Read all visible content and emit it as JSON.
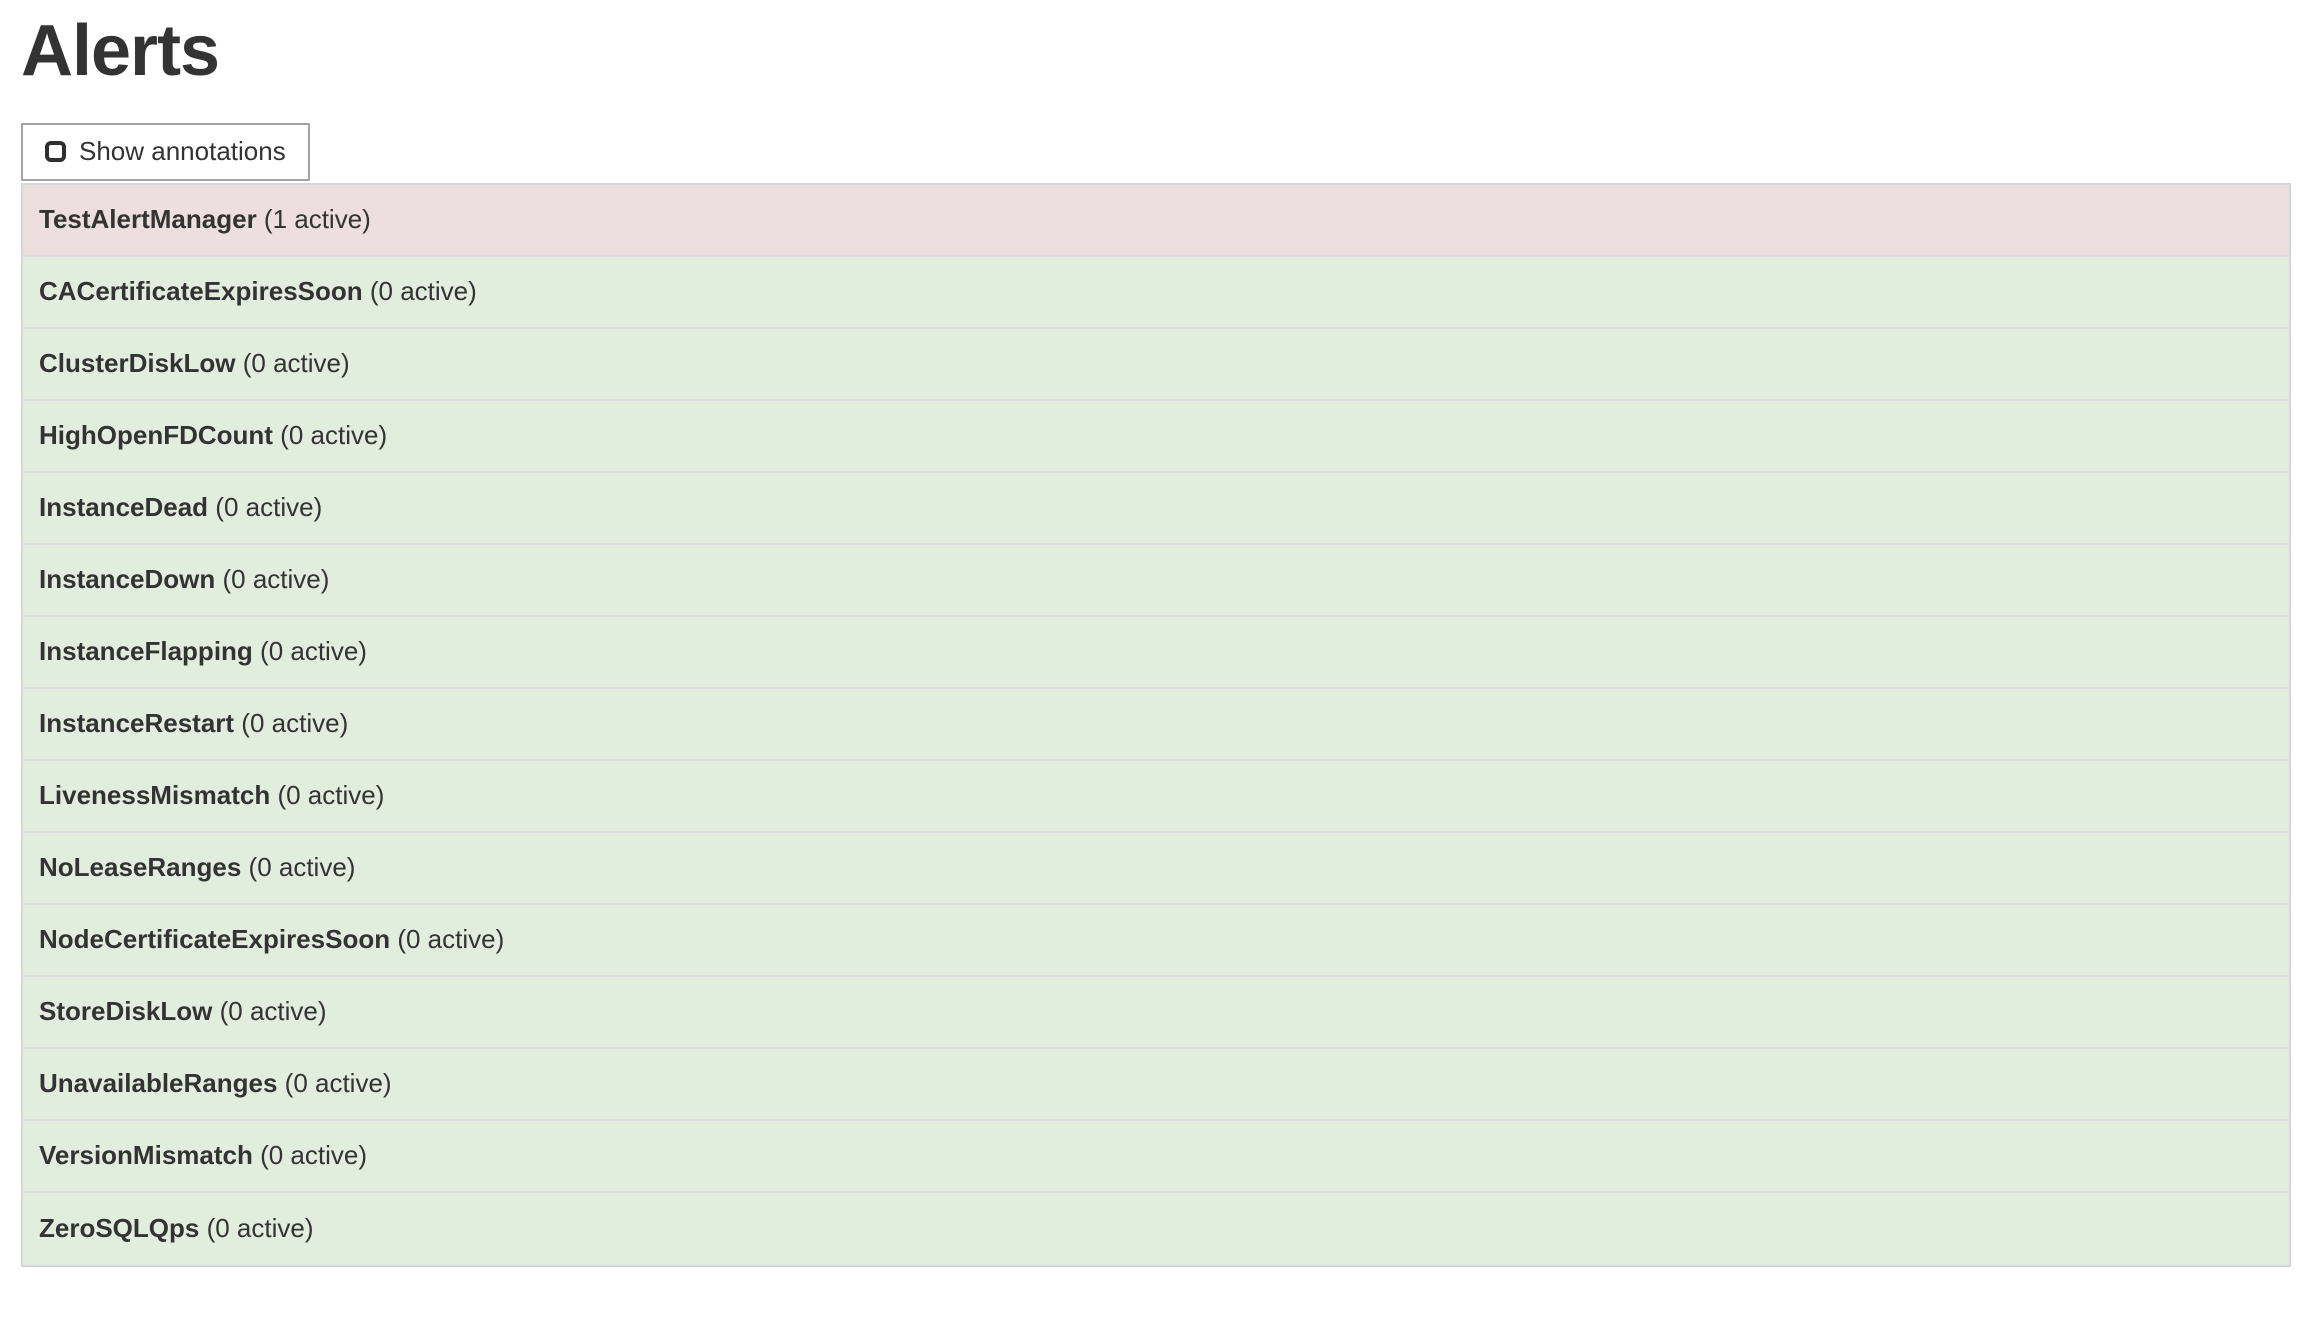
{
  "page": {
    "title": "Alerts"
  },
  "toolbar": {
    "show_annotations_label": "Show annotations",
    "checkbox_checked": false
  },
  "alerts": [
    {
      "name": "TestAlertManager",
      "active_count": 1,
      "count_label": "(1 active)",
      "state": "firing"
    },
    {
      "name": "CACertificateExpiresSoon",
      "active_count": 0,
      "count_label": "(0 active)",
      "state": "inactive"
    },
    {
      "name": "ClusterDiskLow",
      "active_count": 0,
      "count_label": "(0 active)",
      "state": "inactive"
    },
    {
      "name": "HighOpenFDCount",
      "active_count": 0,
      "count_label": "(0 active)",
      "state": "inactive"
    },
    {
      "name": "InstanceDead",
      "active_count": 0,
      "count_label": "(0 active)",
      "state": "inactive"
    },
    {
      "name": "InstanceDown",
      "active_count": 0,
      "count_label": "(0 active)",
      "state": "inactive"
    },
    {
      "name": "InstanceFlapping",
      "active_count": 0,
      "count_label": "(0 active)",
      "state": "inactive"
    },
    {
      "name": "InstanceRestart",
      "active_count": 0,
      "count_label": "(0 active)",
      "state": "inactive"
    },
    {
      "name": "LivenessMismatch",
      "active_count": 0,
      "count_label": "(0 active)",
      "state": "inactive"
    },
    {
      "name": "NoLeaseRanges",
      "active_count": 0,
      "count_label": "(0 active)",
      "state": "inactive"
    },
    {
      "name": "NodeCertificateExpiresSoon",
      "active_count": 0,
      "count_label": "(0 active)",
      "state": "inactive"
    },
    {
      "name": "StoreDiskLow",
      "active_count": 0,
      "count_label": "(0 active)",
      "state": "inactive"
    },
    {
      "name": "UnavailableRanges",
      "active_count": 0,
      "count_label": "(0 active)",
      "state": "inactive"
    },
    {
      "name": "VersionMismatch",
      "active_count": 0,
      "count_label": "(0 active)",
      "state": "inactive"
    },
    {
      "name": "ZeroSQLQps",
      "active_count": 0,
      "count_label": "(0 active)",
      "state": "inactive"
    }
  ],
  "colors": {
    "firing_bg": "#eddee0",
    "inactive_bg": "#e2eedd",
    "row_border": "#dcdce0",
    "outer_border": "#d6d6da",
    "text": "#333333",
    "button_border": "#a3a3a3"
  }
}
